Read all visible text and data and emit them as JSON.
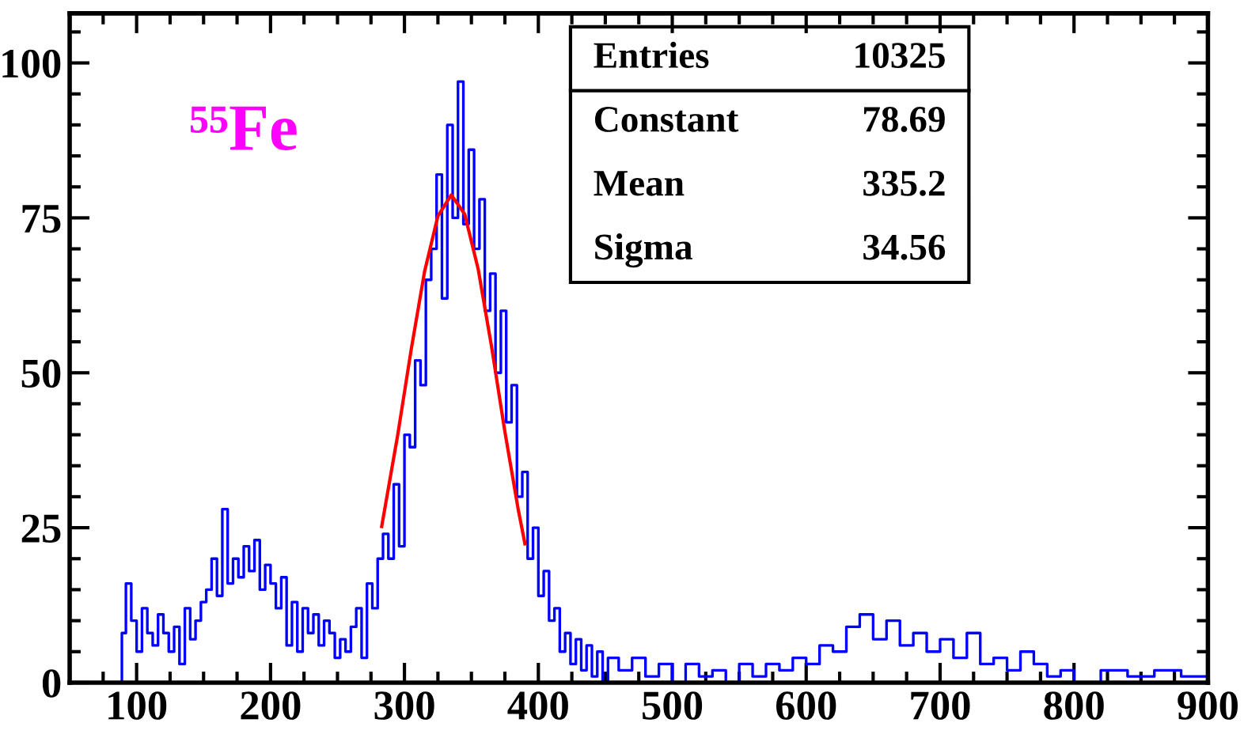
{
  "chart_data": {
    "type": "step",
    "xlim": [
      50,
      900
    ],
    "xticks": [
      100,
      200,
      300,
      400,
      500,
      600,
      700,
      800,
      900
    ],
    "ylim": [
      0,
      108
    ],
    "yticks": [
      0,
      25,
      50,
      75,
      100
    ],
    "grid": false,
    "legend": false,
    "annotations": [
      "⁵⁵Fe",
      "Entries",
      "10325",
      "Constant",
      "78.69",
      "Mean",
      "335.2",
      "Sigma",
      "34.56"
    ],
    "series": [
      {
        "color": "#0000ff",
        "x": [
          50,
          88,
          89,
          92,
          96,
          100,
          104,
          108,
          112,
          116,
          120,
          124,
          128,
          132,
          136,
          140,
          144,
          148,
          152,
          156,
          160,
          164,
          168,
          172,
          176,
          180,
          184,
          188,
          192,
          196,
          200,
          204,
          208,
          212,
          216,
          220,
          224,
          228,
          232,
          236,
          240,
          244,
          248,
          252,
          256,
          260,
          264,
          268,
          272,
          276,
          280,
          284,
          288,
          292,
          296,
          300,
          304,
          308,
          312,
          316,
          320,
          324,
          328,
          332,
          336,
          340,
          344,
          348,
          352,
          356,
          360,
          364,
          368,
          372,
          376,
          380,
          384,
          388,
          392,
          396,
          400,
          404,
          408,
          412,
          416,
          420,
          424,
          428,
          432,
          436,
          440,
          444,
          448,
          452,
          460,
          470,
          480,
          490,
          500,
          510,
          520,
          530,
          540,
          550,
          560,
          570,
          580,
          590,
          600,
          610,
          620,
          630,
          640,
          650,
          660,
          670,
          680,
          690,
          700,
          710,
          720,
          730,
          740,
          750,
          760,
          770,
          780,
          790,
          800,
          820,
          840,
          860,
          880,
          900
        ],
        "values": [
          0,
          0,
          8,
          16,
          10,
          5,
          12,
          8,
          6,
          11,
          8,
          5,
          9,
          3,
          12,
          7,
          10,
          13,
          15,
          20,
          14,
          28,
          16,
          20,
          17,
          22,
          18,
          23,
          15,
          19,
          16,
          12,
          17,
          6,
          13,
          5,
          12,
          8,
          11,
          6,
          10,
          8,
          4,
          7,
          5,
          9,
          12,
          4,
          16,
          12,
          20,
          24,
          20,
          32,
          22,
          40,
          38,
          52,
          48,
          65,
          70,
          82,
          62,
          90,
          75,
          97,
          74,
          86,
          70,
          78,
          60,
          66,
          50,
          60,
          42,
          48,
          30,
          34,
          20,
          25,
          14,
          18,
          10,
          12,
          5,
          8,
          3,
          7,
          2,
          6,
          1,
          5,
          0,
          4,
          2,
          4,
          1,
          3,
          0,
          3,
          1,
          2,
          0,
          3,
          1,
          3,
          2,
          4,
          3,
          6,
          5,
          9,
          11,
          7,
          10,
          6,
          8,
          5,
          7,
          4,
          8,
          3,
          4,
          2,
          5,
          3,
          1,
          2,
          0,
          2,
          1,
          2,
          1,
          1
        ]
      },
      {
        "type": "line",
        "color": "#ff0000",
        "x": [
          283,
          295,
          305,
          315,
          325,
          335,
          345,
          355,
          365,
          375,
          385,
          390
        ],
        "values": [
          25.2,
          40.0,
          53.7,
          66.3,
          75.3,
          78.7,
          75.6,
          66.8,
          54.3,
          40.5,
          27.9,
          22.4
        ]
      }
    ]
  }
}
